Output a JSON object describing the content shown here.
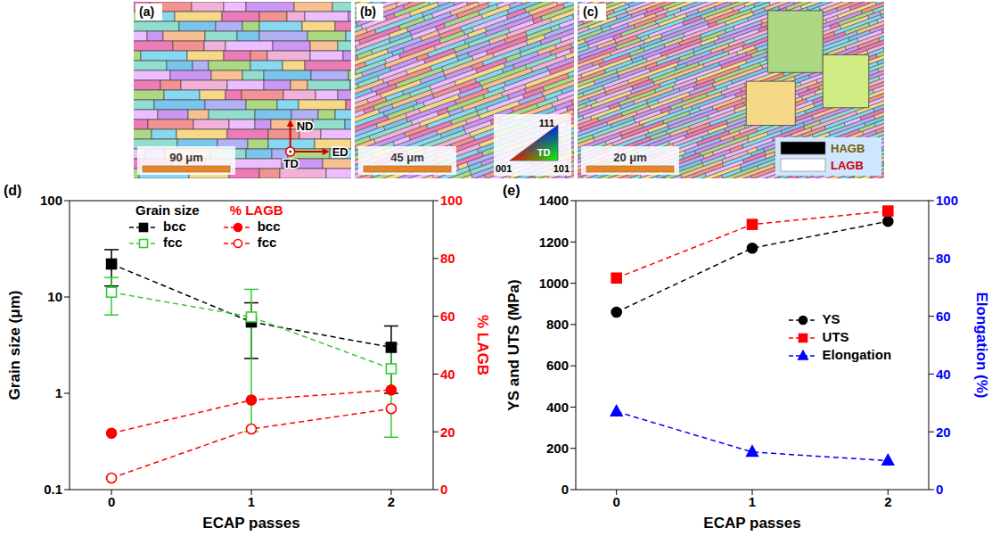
{
  "panels": [
    {
      "label": "(a)",
      "scale_bar": "90 μm",
      "axes": {
        "up": "ND",
        "origin": "TD",
        "right": "ED"
      }
    },
    {
      "label": "(b)",
      "scale_bar": "45 μm",
      "ipf_key": {
        "direction": "TD",
        "corners": [
          "001",
          "101",
          "111"
        ]
      }
    },
    {
      "label": "(c)",
      "scale_bar": "20 μm",
      "boundaries": [
        {
          "name": "HAGB",
          "color": "#000000"
        },
        {
          "name": "LAGB",
          "color": "#ffffff"
        }
      ]
    }
  ],
  "chart_data": [
    {
      "type": "line",
      "title": "(d)",
      "x_label": "ECAP passes",
      "y_label": "Grain size (μm)",
      "y2_label": "% LAGB",
      "x": [
        0,
        1,
        2
      ],
      "xlim": [
        -0.3,
        2.3
      ],
      "xticks": [
        0,
        1,
        2
      ],
      "log": "y",
      "ylim": [
        0.1,
        100
      ],
      "yticks": [
        0.1,
        1,
        10,
        100
      ],
      "y2lim": [
        0,
        100
      ],
      "y2ticks": [
        0,
        20,
        40,
        60,
        80,
        100
      ],
      "legend": "top left",
      "series": [
        {
          "name": "bcc",
          "group": "Grain size",
          "color": "#000000",
          "marker": "square",
          "line_style": "dashed",
          "values": [
            22,
            5.5,
            3.0
          ],
          "errors": [
            9,
            3.2,
            2
          ]
        },
        {
          "name": "fcc",
          "group": "Grain size",
          "color": "#33cc33",
          "marker": "open square",
          "line_style": "dashed",
          "values": [
            11.2,
            6.2,
            1.8
          ],
          "errors": [
            4.7,
            5.8,
            1.45
          ]
        },
        {
          "name": "bcc",
          "group": "% LAGB",
          "axis": "y2",
          "color": "#ff0000",
          "marker": "circle",
          "line_style": "dashed",
          "values": [
            19.5,
            31,
            34.5
          ]
        },
        {
          "name": "fcc",
          "group": "% LAGB",
          "axis": "y2",
          "color": "#ff0000",
          "marker": "open circle",
          "line_style": "dashed",
          "values": [
            4,
            21,
            28
          ]
        }
      ]
    },
    {
      "type": "line",
      "title": "(e)",
      "x_label": "ECAP passes",
      "y_label": "YS and UTS (MPa)",
      "y2_label": "Elongation (%)",
      "x": [
        0,
        1,
        2
      ],
      "xlim": [
        -0.3,
        2.3
      ],
      "xticks": [
        0,
        1,
        2
      ],
      "ylim": [
        0,
        1400
      ],
      "yticks": [
        0,
        200,
        400,
        600,
        800,
        1000,
        1200,
        1400
      ],
      "y2lim": [
        0,
        100
      ],
      "y2ticks": [
        0,
        20,
        40,
        60,
        80,
        100
      ],
      "legend": "right",
      "series": [
        {
          "name": "YS",
          "color": "#000000",
          "marker": "circle",
          "line_style": "dashed",
          "values": [
            860,
            1170,
            1300
          ]
        },
        {
          "name": "UTS",
          "color": "#ff0000",
          "marker": "square",
          "line_style": "dashed",
          "values": [
            1025,
            1285,
            1350
          ]
        },
        {
          "name": "Elongation",
          "axis": "y2",
          "color": "#0000ff",
          "marker": "triangle",
          "line_style": "dashed",
          "values": [
            27,
            13,
            10
          ]
        }
      ]
    }
  ]
}
